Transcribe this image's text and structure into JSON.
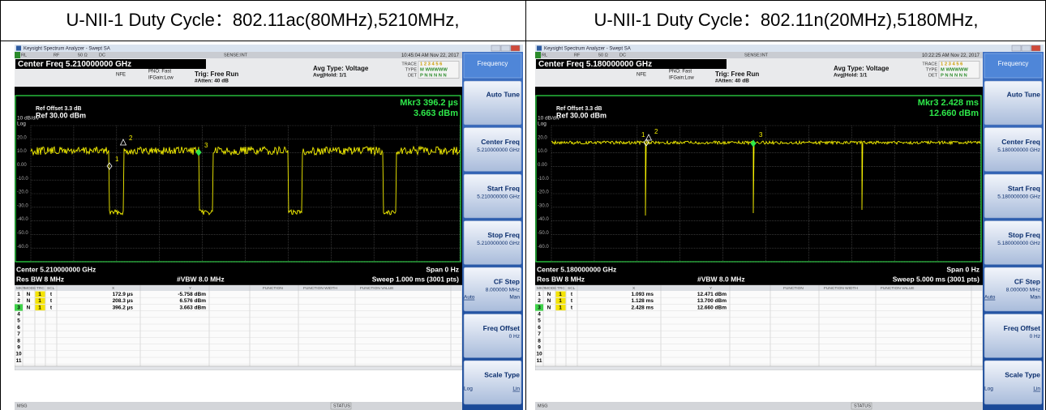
{
  "header": [
    "U-NII-1 Duty Cycle：802.11ac(80MHz),5210MHz,",
    "U-NII-1 Duty Cycle：802.11n(20MHz),5180MHz,"
  ],
  "screens": [
    {
      "window_title": "Keysight Spectrum Analyzer - Swept SA",
      "status_items": [
        "RL",
        "RF",
        "50 Ω",
        "DC",
        "SENSE:INT"
      ],
      "datetime": "10:45:04 AM Nov 22, 2017",
      "center_freq_title": "Center Freq 5.210000000 GHz",
      "settings": [
        "NFE",
        "PNO: Fast",
        "IFGain:Low",
        "Trig: Free Run",
        "#Atten: 40 dB",
        "Avg Type: Voltage",
        "Avg|Hold: 1/1"
      ],
      "trace_info": [
        "TRACE",
        "TYPE",
        "DET",
        "1 2 3 4 5 6",
        "M WWWWW",
        "P N N N N N"
      ],
      "scale": "10 dB/div",
      "log": "Log",
      "ref_offset": "Ref Offset 3.3 dB",
      "ref": "Ref 30.00 dBm",
      "y_labels": [
        "20.0",
        "10.0",
        "0.00",
        "-10.0",
        "-20.0",
        "-30.0",
        "-40.0",
        "-50.0",
        "-60.0"
      ],
      "marker_readout": [
        "Mkr3 396.2 µs",
        "3.663 dBm"
      ],
      "footer": [
        "Center 5.210000000 GHz",
        "Span 0 Hz",
        "Res BW 8 MHz",
        "#VBW 8.0 MHz",
        "Sweep  1.000 ms (3001 pts)"
      ],
      "marker_table": {
        "columns": [
          "MKR",
          "MODE",
          "TRC",
          "SCL",
          "X",
          "Y",
          "FUNCTION",
          "FUNCTION WIDTH",
          "FUNCTION VALUE"
        ],
        "rows": [
          [
            "1",
            "N",
            "1",
            "t",
            "172.9 µs",
            "-5.758 dBm"
          ],
          [
            "2",
            "N",
            "1",
            "t",
            "208.3 µs",
            "6.576 dBm"
          ],
          [
            "3",
            "N",
            "1",
            "t",
            "396.2 µs",
            "3.663 dBm"
          ],
          [
            "4"
          ],
          [
            "5"
          ],
          [
            "6"
          ],
          [
            "7"
          ],
          [
            "8"
          ],
          [
            "9"
          ],
          [
            "10"
          ],
          [
            "11"
          ]
        ]
      },
      "status_bar": [
        "MSG",
        "STATUS"
      ],
      "softkeys": {
        "menu": "Frequency",
        "keys": [
          {
            "label": "Auto Tune"
          },
          {
            "label": "Center Freq",
            "value": "5.210000000 GHz"
          },
          {
            "label": "Start Freq",
            "value": "5.210000000 GHz"
          },
          {
            "label": "Stop Freq",
            "value": "5.210000000 GHz"
          },
          {
            "label": "CF Step",
            "value": "8.000000 MHz",
            "options": [
              "Auto",
              "Man"
            ]
          },
          {
            "label": "Freq Offset",
            "value": "0 Hz"
          },
          {
            "label": "Scale Type",
            "options": [
              "Log",
              "Lin"
            ]
          }
        ]
      }
    },
    {
      "window_title": "Keysight Spectrum Analyzer - Swept SA",
      "status_items": [
        "RL",
        "RF",
        "50 Ω",
        "DC",
        "SENSE:INT"
      ],
      "datetime": "10:22:25 AM Nov 22, 2017",
      "center_freq_title": "Center Freq 5.180000000 GHz",
      "settings": [
        "NFE",
        "PNO: Fast",
        "IFGain:Low",
        "Trig: Free Run",
        "#Atten: 40 dB",
        "Avg Type: Voltage",
        "Avg|Hold: 1/1"
      ],
      "trace_info": [
        "TRACE",
        "TYPE",
        "DET",
        "1 2 3 4 5 6",
        "M WWWWW",
        "P N N N N N"
      ],
      "scale": "10 dB/div",
      "log": "Log",
      "ref_offset": "Ref Offset 3.3 dB",
      "ref": "Ref 30.00 dBm",
      "y_labels": [
        "20.0",
        "10.0",
        "0.00",
        "-10.0",
        "-20.0",
        "-30.0",
        "-40.0",
        "-50.0",
        "-60.0"
      ],
      "marker_readout": [
        "Mkr3 2.428 ms",
        "12.660 dBm"
      ],
      "footer": [
        "Center 5.180000000 GHz",
        "Span 0 Hz",
        "Res BW 8 MHz",
        "#VBW 8.0 MHz",
        "Sweep  5.000 ms (3001 pts)"
      ],
      "marker_table": {
        "columns": [
          "MKR",
          "MODE",
          "TRC",
          "SCL",
          "X",
          "Y",
          "FUNCTION",
          "FUNCTION WIDTH",
          "FUNCTION VALUE"
        ],
        "rows": [
          [
            "1",
            "N",
            "1",
            "t",
            "1.093 ms",
            "12.471 dBm"
          ],
          [
            "2",
            "N",
            "1",
            "t",
            "1.128 ms",
            "13.700 dBm"
          ],
          [
            "3",
            "N",
            "1",
            "t",
            "2.428 ms",
            "12.660 dBm"
          ],
          [
            "4"
          ],
          [
            "5"
          ],
          [
            "6"
          ],
          [
            "7"
          ],
          [
            "8"
          ],
          [
            "9"
          ],
          [
            "10"
          ],
          [
            "11"
          ]
        ]
      },
      "status_bar": [
        "MSG",
        "STATUS"
      ],
      "softkeys": {
        "menu": "Frequency",
        "keys": [
          {
            "label": "Auto Tune"
          },
          {
            "label": "Center Freq",
            "value": "5.180000000 GHz"
          },
          {
            "label": "Start Freq",
            "value": "5.180000000 GHz"
          },
          {
            "label": "Stop Freq",
            "value": "5.180000000 GHz"
          },
          {
            "label": "CF Step",
            "value": "8.000000 MHz",
            "options": [
              "Auto",
              "Man"
            ]
          },
          {
            "label": "Freq Offset",
            "value": "0 Hz"
          },
          {
            "label": "Scale Type",
            "options": [
              "Log",
              "Lin"
            ]
          }
        ]
      }
    }
  ]
}
